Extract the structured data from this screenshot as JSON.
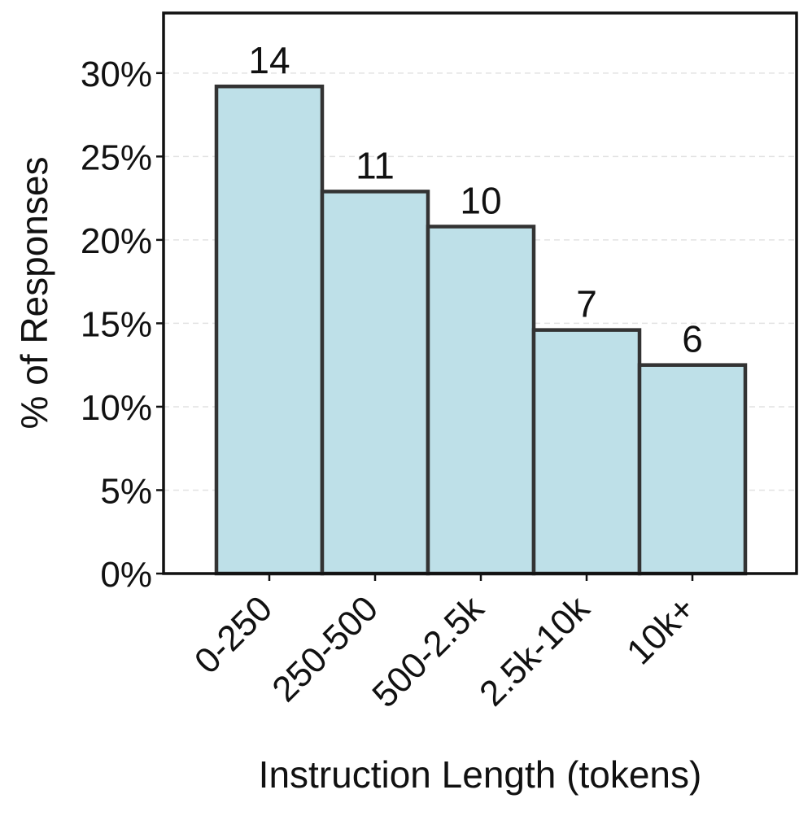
{
  "chart_data": {
    "type": "bar",
    "categories": [
      "0-250",
      "250-500",
      "500-2.5k",
      "2.5k-10k",
      "10k+"
    ],
    "values": [
      29.2,
      22.9,
      20.8,
      14.6,
      12.5
    ],
    "counts": [
      "14",
      "11",
      "10",
      "7",
      "6"
    ],
    "xlabel": "Instruction Length (tokens)",
    "ylabel": "% of Responses",
    "ylim": [
      0,
      33.6
    ],
    "yticks": [
      0,
      5,
      10,
      15,
      20,
      25,
      30
    ],
    "ytick_labels": [
      "0%",
      "5%",
      "10%",
      "15%",
      "20%",
      "25%",
      "30%"
    ],
    "grid": "horizontal dashed",
    "colors": {
      "bar_fill": "#bee0e8",
      "bar_edge": "#333333",
      "grid": "#e2e2e2",
      "axis": "#111111"
    }
  }
}
